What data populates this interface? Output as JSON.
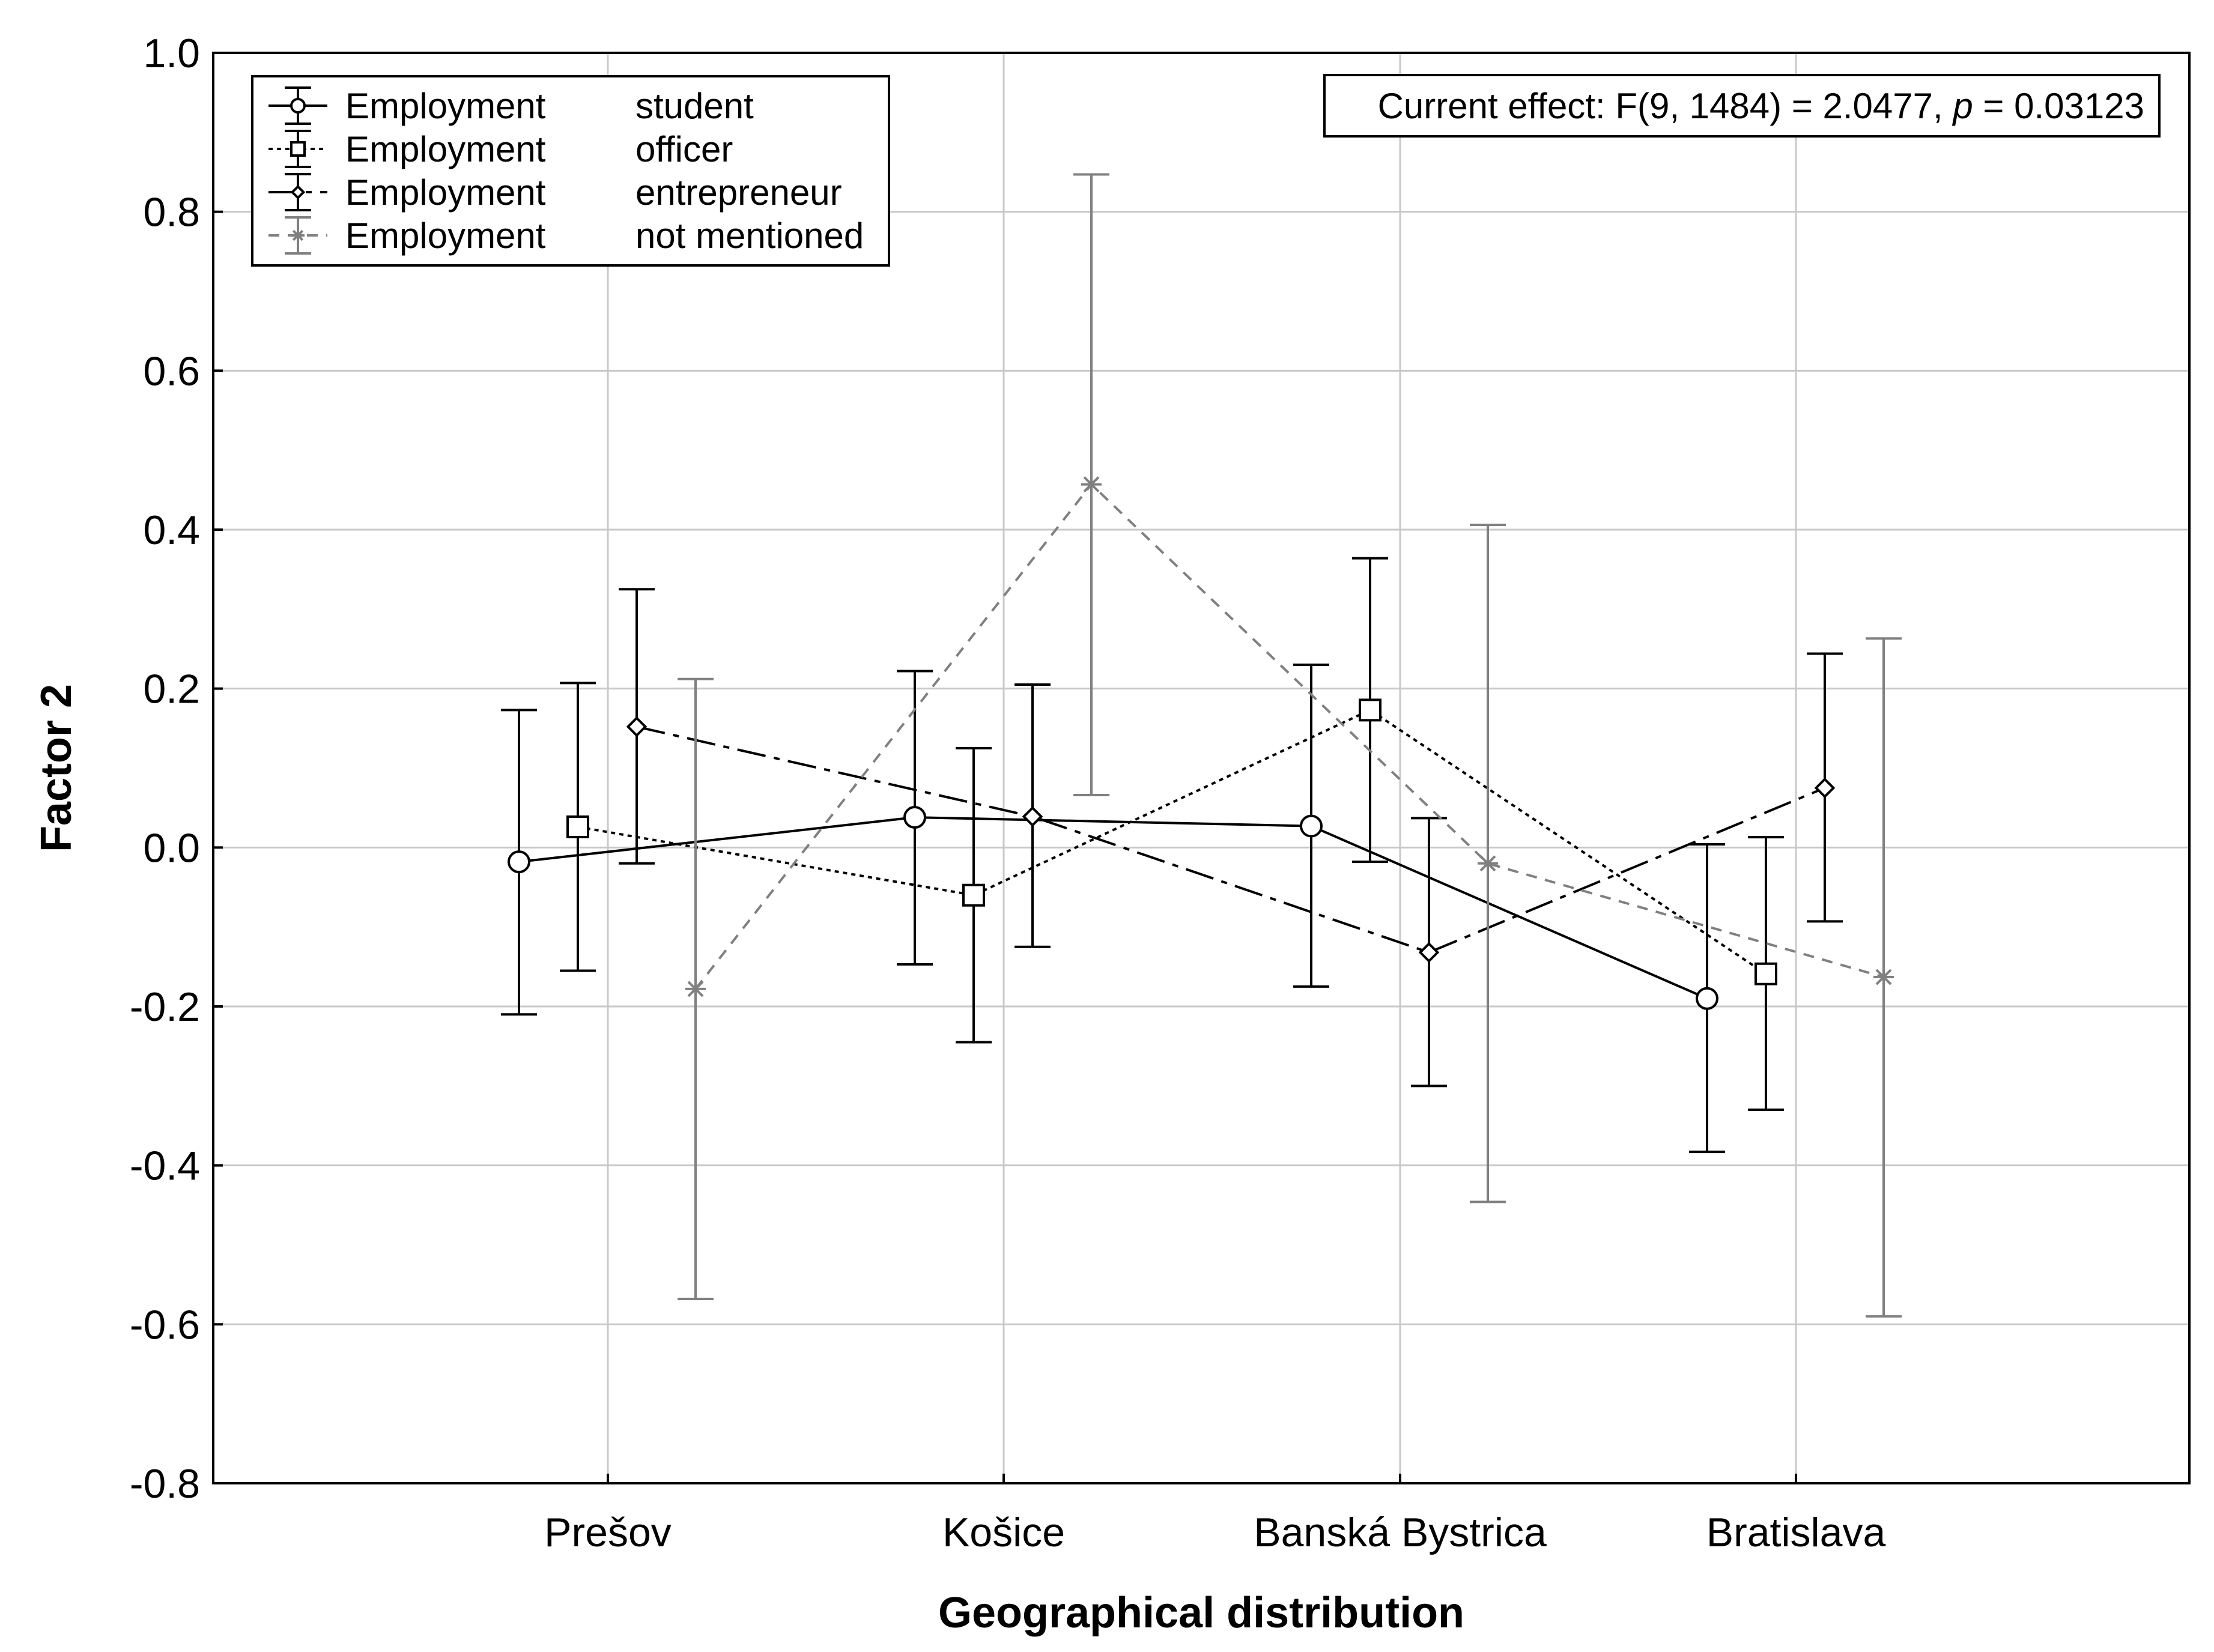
{
  "chart_data": {
    "type": "line",
    "xlabel": "Geographical distribution",
    "ylabel": "Factor 2",
    "ylim": [
      -0.8,
      1.0
    ],
    "yticks": [
      1.0,
      0.8,
      0.6,
      0.4,
      0.2,
      0.0,
      -0.2,
      -0.4,
      -0.6,
      -0.8
    ],
    "ytick_labels": [
      "1.0",
      "0.8",
      "0.6",
      "0.4",
      "0.2",
      "0.0",
      "-0.2",
      "-0.4",
      "-0.6",
      "-0.8"
    ],
    "categories": [
      "Prešov",
      "Košice",
      "Banská Bystrica",
      "Bratislava"
    ],
    "grid": true,
    "legend_position": "top-left",
    "annotation": {
      "prefix": "Current effect: F(9, 1484) = 2.0477, ",
      "p_symbol": "p",
      "suffix": " = 0.03123",
      "position": "top-right"
    },
    "series": [
      {
        "name": "student",
        "legend_label": "Employment",
        "marker": "circle",
        "line_style": "solid",
        "color": "#000000",
        "values": [
          -0.018,
          0.038,
          0.027,
          -0.19
        ],
        "err_low": [
          -0.21,
          -0.147,
          -0.175,
          -0.383
        ],
        "err_high": [
          0.173,
          0.222,
          0.23,
          0.004
        ]
      },
      {
        "name": "officer",
        "legend_label": "Employment",
        "marker": "square",
        "line_style": "dotted",
        "color": "#000000",
        "values": [
          0.026,
          -0.06,
          0.173,
          -0.159
        ],
        "err_low": [
          -0.155,
          -0.245,
          -0.018,
          -0.33
        ],
        "err_high": [
          0.207,
          0.125,
          0.364,
          0.013
        ]
      },
      {
        "name": "entrepreneur",
        "legend_label": "Employment",
        "marker": "diamond",
        "line_style": "dashdot",
        "color": "#000000",
        "values": [
          0.152,
          0.039,
          -0.132,
          0.075
        ],
        "err_low": [
          -0.02,
          -0.125,
          -0.3,
          -0.093
        ],
        "err_high": [
          0.325,
          0.205,
          0.037,
          0.244
        ]
      },
      {
        "name": "not mentioned",
        "legend_label": "Employment",
        "marker": "asterisk",
        "line_style": "dashed",
        "color": "#808080",
        "values": [
          -0.178,
          0.457,
          -0.02,
          -0.163
        ],
        "err_low": [
          -0.568,
          0.066,
          -0.446,
          -0.59
        ],
        "err_high": [
          0.212,
          0.847,
          0.406,
          0.263
        ]
      }
    ]
  }
}
